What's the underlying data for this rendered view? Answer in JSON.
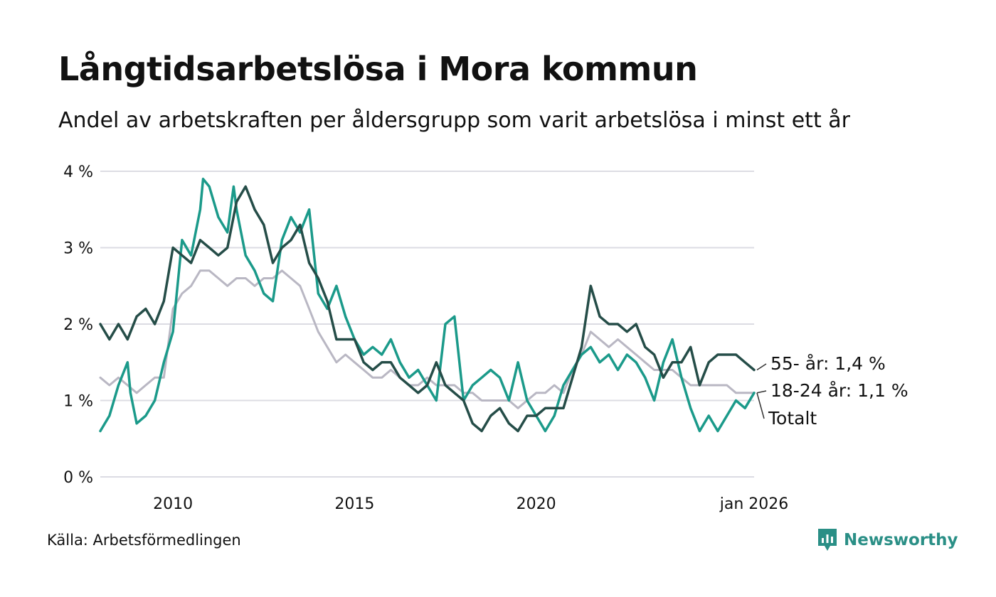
{
  "header": {
    "title": "Långtidsarbetslösa i Mora kommun",
    "subtitle": "Andel av arbetskraften per åldersgrupp som varit arbetslösa i minst ett år"
  },
  "footer": {
    "source": "Källa: Arbetsförmedlingen",
    "brand": "Newsworthy"
  },
  "colors": {
    "total": "#b9b7c3",
    "youth": "#1b9a8a",
    "older": "#254d48",
    "grid": "#dcdce3",
    "brand": "#2a8f86"
  },
  "chart_data": {
    "type": "line",
    "title": "Långtidsarbetslösa i Mora kommun",
    "subtitle": "Andel av arbetskraften per åldersgrupp som varit arbetslösa i minst ett år",
    "xlabel": "",
    "ylabel": "",
    "xlim": [
      2008.0,
      2026.0
    ],
    "ylim": [
      0,
      4
    ],
    "grid": true,
    "y_ticks": [
      {
        "value": 0,
        "label": "0 %"
      },
      {
        "value": 1,
        "label": "1 %"
      },
      {
        "value": 2,
        "label": "2 %"
      },
      {
        "value": 3,
        "label": "3 %"
      },
      {
        "value": 4,
        "label": "4 %"
      }
    ],
    "x_ticks": [
      {
        "value": 2010,
        "label": "2010"
      },
      {
        "value": 2015,
        "label": "2015"
      },
      {
        "value": 2020,
        "label": "2020"
      },
      {
        "value": 2026,
        "label": "jan 2026"
      }
    ],
    "series": [
      {
        "name": "Totalt",
        "key": "total",
        "end_label": "Totalt",
        "x": [
          2008.0,
          2008.25,
          2008.5,
          2008.75,
          2009.0,
          2009.25,
          2009.5,
          2009.75,
          2010.0,
          2010.25,
          2010.5,
          2010.75,
          2011.0,
          2011.25,
          2011.5,
          2011.75,
          2012.0,
          2012.25,
          2012.5,
          2012.75,
          2013.0,
          2013.25,
          2013.5,
          2013.75,
          2014.0,
          2014.25,
          2014.5,
          2014.75,
          2015.0,
          2015.25,
          2015.5,
          2015.75,
          2016.0,
          2016.25,
          2016.5,
          2016.75,
          2017.0,
          2017.25,
          2017.5,
          2017.75,
          2018.0,
          2018.25,
          2018.5,
          2018.75,
          2019.0,
          2019.25,
          2019.5,
          2019.75,
          2020.0,
          2020.25,
          2020.5,
          2020.75,
          2021.0,
          2021.25,
          2021.5,
          2021.75,
          2022.0,
          2022.25,
          2022.5,
          2022.75,
          2023.0,
          2023.25,
          2023.5,
          2023.75,
          2024.0,
          2024.25,
          2024.5,
          2024.75,
          2025.0,
          2025.25,
          2025.5,
          2025.75,
          2026.0
        ],
        "y": [
          1.3,
          1.2,
          1.3,
          1.2,
          1.1,
          1.2,
          1.3,
          1.3,
          2.2,
          2.4,
          2.5,
          2.7,
          2.7,
          2.6,
          2.5,
          2.6,
          2.6,
          2.5,
          2.6,
          2.6,
          2.7,
          2.6,
          2.5,
          2.2,
          1.9,
          1.7,
          1.5,
          1.6,
          1.5,
          1.4,
          1.3,
          1.3,
          1.4,
          1.3,
          1.2,
          1.2,
          1.3,
          1.2,
          1.2,
          1.2,
          1.1,
          1.1,
          1.0,
          1.0,
          1.0,
          1.0,
          0.9,
          1.0,
          1.1,
          1.1,
          1.2,
          1.1,
          1.4,
          1.6,
          1.9,
          1.8,
          1.7,
          1.8,
          1.7,
          1.6,
          1.5,
          1.4,
          1.4,
          1.4,
          1.3,
          1.2,
          1.2,
          1.2,
          1.2,
          1.2,
          1.1,
          1.1,
          1.1
        ]
      },
      {
        "name": "18-24 år",
        "key": "youth",
        "end_label": "18-24 år: 1,1 %",
        "x": [
          2008.0,
          2008.25,
          2008.5,
          2008.75,
          2008.83,
          2009.0,
          2009.25,
          2009.5,
          2009.75,
          2010.0,
          2010.25,
          2010.5,
          2010.75,
          2010.83,
          2011.0,
          2011.25,
          2011.5,
          2011.67,
          2011.75,
          2012.0,
          2012.25,
          2012.5,
          2012.75,
          2013.0,
          2013.25,
          2013.5,
          2013.75,
          2014.0,
          2014.25,
          2014.5,
          2014.75,
          2015.0,
          2015.25,
          2015.5,
          2015.75,
          2016.0,
          2016.25,
          2016.5,
          2016.75,
          2017.0,
          2017.25,
          2017.5,
          2017.75,
          2018.0,
          2018.25,
          2018.5,
          2018.75,
          2019.0,
          2019.25,
          2019.5,
          2019.75,
          2020.0,
          2020.25,
          2020.5,
          2020.75,
          2021.0,
          2021.25,
          2021.5,
          2021.75,
          2022.0,
          2022.25,
          2022.5,
          2022.75,
          2023.0,
          2023.25,
          2023.5,
          2023.75,
          2024.0,
          2024.25,
          2024.5,
          2024.75,
          2025.0,
          2025.25,
          2025.5,
          2025.75,
          2026.0
        ],
        "y": [
          0.6,
          0.8,
          1.2,
          1.5,
          1.1,
          0.7,
          0.8,
          1.0,
          1.5,
          1.9,
          3.1,
          2.9,
          3.5,
          3.9,
          3.8,
          3.4,
          3.2,
          3.8,
          3.5,
          2.9,
          2.7,
          2.4,
          2.3,
          3.1,
          3.4,
          3.2,
          3.5,
          2.4,
          2.2,
          2.5,
          2.1,
          1.8,
          1.6,
          1.7,
          1.6,
          1.8,
          1.5,
          1.3,
          1.4,
          1.2,
          1.0,
          2.0,
          2.1,
          1.0,
          1.2,
          1.3,
          1.4,
          1.3,
          1.0,
          1.5,
          1.0,
          0.8,
          0.6,
          0.8,
          1.2,
          1.4,
          1.6,
          1.7,
          1.5,
          1.6,
          1.4,
          1.6,
          1.5,
          1.3,
          1.0,
          1.5,
          1.8,
          1.3,
          0.9,
          0.6,
          0.8,
          0.6,
          0.8,
          1.0,
          0.9,
          1.1
        ]
      },
      {
        "name": "55- år",
        "key": "older",
        "end_label": "55- år: 1,4 %",
        "x": [
          2008.0,
          2008.25,
          2008.5,
          2008.75,
          2009.0,
          2009.25,
          2009.5,
          2009.75,
          2010.0,
          2010.25,
          2010.5,
          2010.75,
          2011.0,
          2011.25,
          2011.5,
          2011.75,
          2012.0,
          2012.25,
          2012.5,
          2012.75,
          2013.0,
          2013.25,
          2013.5,
          2013.75,
          2014.0,
          2014.25,
          2014.5,
          2014.75,
          2015.0,
          2015.25,
          2015.5,
          2015.75,
          2016.0,
          2016.25,
          2016.5,
          2016.75,
          2017.0,
          2017.25,
          2017.5,
          2017.75,
          2018.0,
          2018.25,
          2018.5,
          2018.75,
          2019.0,
          2019.25,
          2019.5,
          2019.75,
          2020.0,
          2020.25,
          2020.5,
          2020.75,
          2021.0,
          2021.25,
          2021.5,
          2021.75,
          2022.0,
          2022.25,
          2022.5,
          2022.75,
          2023.0,
          2023.25,
          2023.5,
          2023.75,
          2024.0,
          2024.25,
          2024.5,
          2024.75,
          2025.0,
          2025.25,
          2025.5,
          2025.75,
          2026.0
        ],
        "y": [
          2.0,
          1.8,
          2.0,
          1.8,
          2.1,
          2.2,
          2.0,
          2.3,
          3.0,
          2.9,
          2.8,
          3.1,
          3.0,
          2.9,
          3.0,
          3.6,
          3.8,
          3.5,
          3.3,
          2.8,
          3.0,
          3.1,
          3.3,
          2.8,
          2.6,
          2.3,
          1.8,
          1.8,
          1.8,
          1.5,
          1.4,
          1.5,
          1.5,
          1.3,
          1.2,
          1.1,
          1.2,
          1.5,
          1.2,
          1.1,
          1.0,
          0.7,
          0.6,
          0.8,
          0.9,
          0.7,
          0.6,
          0.8,
          0.8,
          0.9,
          0.9,
          0.9,
          1.3,
          1.7,
          2.5,
          2.1,
          2.0,
          2.0,
          1.9,
          2.0,
          1.7,
          1.6,
          1.3,
          1.5,
          1.5,
          1.7,
          1.2,
          1.5,
          1.6,
          1.6,
          1.6,
          1.5,
          1.4
        ]
      }
    ]
  }
}
